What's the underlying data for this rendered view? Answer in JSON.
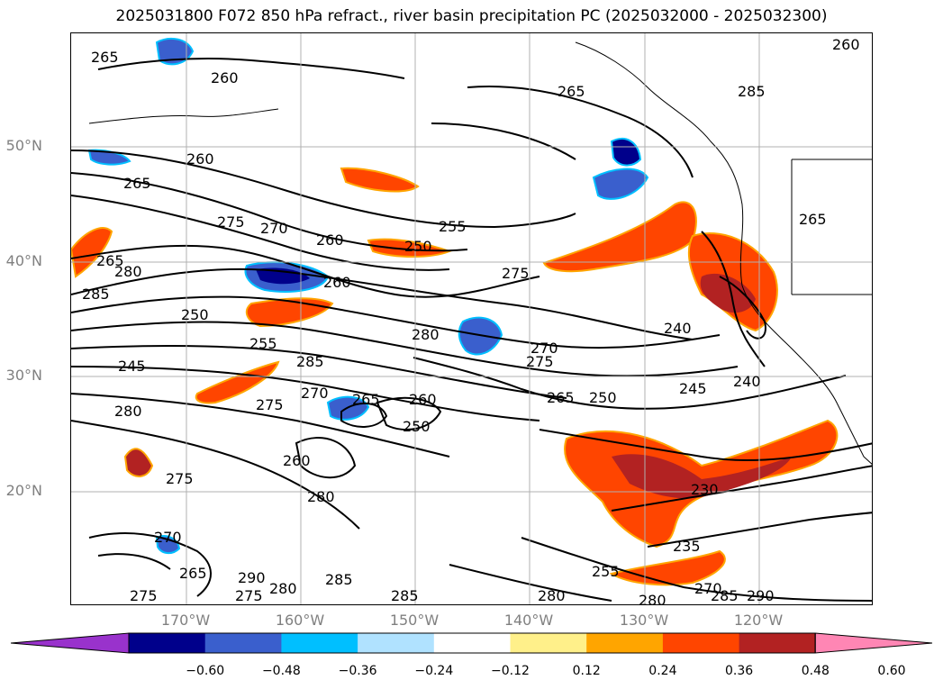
{
  "title": "2025031800 F072 850 hPa refract., river basin precipitation PC (2025032000 - 2025032300)",
  "map": {
    "lat_labels": [
      "50°N",
      "40°N",
      "30°N",
      "20°N"
    ],
    "lon_labels": [
      "170°W",
      "160°W",
      "150°W",
      "140°W",
      "130°W",
      "120°W"
    ],
    "contour_labels": [
      {
        "text": "265"
      },
      {
        "text": "260"
      },
      {
        "text": "265"
      },
      {
        "text": "285"
      },
      {
        "text": "260"
      },
      {
        "text": "265"
      },
      {
        "text": "275"
      },
      {
        "text": "270"
      },
      {
        "text": "260"
      },
      {
        "text": "255"
      },
      {
        "text": "250"
      },
      {
        "text": "275"
      },
      {
        "text": "265"
      },
      {
        "text": "280"
      },
      {
        "text": "285"
      },
      {
        "text": "250"
      },
      {
        "text": "260"
      },
      {
        "text": "255"
      },
      {
        "text": "245"
      },
      {
        "text": "285"
      },
      {
        "text": "275"
      },
      {
        "text": "270"
      },
      {
        "text": "265"
      },
      {
        "text": "260"
      },
      {
        "text": "250"
      },
      {
        "text": "280"
      },
      {
        "text": "270"
      },
      {
        "text": "275"
      },
      {
        "text": "265"
      },
      {
        "text": "250"
      },
      {
        "text": "245"
      },
      {
        "text": "240"
      },
      {
        "text": "240"
      },
      {
        "text": "280"
      },
      {
        "text": "275"
      },
      {
        "text": "260"
      },
      {
        "text": "280"
      },
      {
        "text": "230"
      },
      {
        "text": "235"
      },
      {
        "text": "255"
      },
      {
        "text": "270"
      },
      {
        "text": "265"
      },
      {
        "text": "290"
      },
      {
        "text": "280"
      },
      {
        "text": "285"
      },
      {
        "text": "275"
      },
      {
        "text": "280"
      },
      {
        "text": "285"
      },
      {
        "text": "270"
      },
      {
        "text": "280"
      },
      {
        "text": "275"
      },
      {
        "text": "285"
      },
      {
        "text": "290"
      },
      {
        "text": "265"
      },
      {
        "text": "260"
      }
    ]
  },
  "colorbar": {
    "ticks": [
      "−0.60",
      "−0.48",
      "−0.36",
      "−0.24",
      "−0.12",
      "0.12",
      "0.24",
      "0.36",
      "0.48",
      "0.60"
    ],
    "colors": [
      "#9932cc",
      "#00008b",
      "#3a5fcd",
      "#00bfff",
      "#b0e2ff",
      "#ffffff",
      "#fff08a",
      "#ffa500",
      "#ff4500",
      "#b22222",
      "#ff86b4"
    ]
  }
}
